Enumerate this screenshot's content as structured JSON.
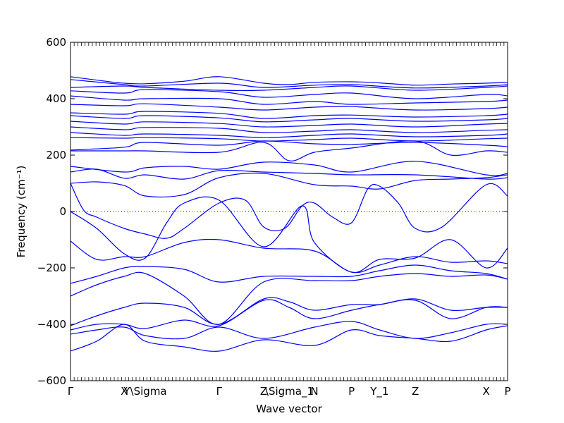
{
  "chart_data": {
    "type": "line",
    "title": "",
    "xlabel": "Wave vector",
    "ylabel": "Frequency (cm⁻¹)",
    "ylim": [
      -600,
      600
    ],
    "yticks": [
      -600,
      -400,
      -200,
      0,
      200,
      400,
      600
    ],
    "grid": false,
    "legend": "none",
    "line_color": "#0000ff",
    "zero_line": true,
    "high_symmetry_points": [
      {
        "label": "Γ",
        "x": 0.0
      },
      {
        "label": "X",
        "x": 0.123
      },
      {
        "label": "Y\\Sigma",
        "x": 0.171
      },
      {
        "label": "Γ",
        "x": 0.34
      },
      {
        "label": "Z",
        "x": 0.442
      },
      {
        "label": "\\Sigma_1",
        "x": 0.445
      },
      {
        "label": "N",
        "x": 0.558
      },
      {
        "label": "P",
        "x": 0.643
      },
      {
        "label": "Y_1",
        "x": 0.707
      },
      {
        "label": "Z",
        "x": 0.789
      },
      {
        "label": "X",
        "x": 0.951
      },
      {
        "label": "P",
        "x": 1.0
      }
    ],
    "series": [
      {
        "x": [
          0,
          0.08,
          0.123,
          0.171,
          0.26,
          0.34,
          0.442,
          0.5,
          0.558,
          0.643,
          0.707,
          0.789,
          0.87,
          0.951,
          1
        ],
        "y": [
          478,
          462,
          455,
          453,
          462,
          478,
          455,
          450,
          458,
          460,
          456,
          448,
          452,
          455,
          458
        ]
      },
      {
        "x": [
          0,
          0.123,
          0.171,
          0.34,
          0.442,
          0.558,
          0.643,
          0.789,
          0.951,
          1
        ],
        "y": [
          468,
          450,
          445,
          455,
          440,
          448,
          450,
          438,
          445,
          450
        ]
      },
      {
        "x": [
          0,
          0.123,
          0.171,
          0.34,
          0.442,
          0.558,
          0.643,
          0.789,
          0.951,
          1
        ],
        "y": [
          440,
          445,
          440,
          430,
          430,
          440,
          445,
          430,
          440,
          445
        ]
      },
      {
        "x": [
          0,
          0.123,
          0.171,
          0.34,
          0.442,
          0.558,
          0.643,
          0.789,
          0.951,
          1
        ],
        "y": [
          428,
          420,
          432,
          425,
          405,
          415,
          420,
          400,
          415,
          410
        ]
      },
      {
        "x": [
          0,
          0.123,
          0.171,
          0.34,
          0.442,
          0.558,
          0.643,
          0.789,
          0.951,
          1
        ],
        "y": [
          410,
          395,
          400,
          400,
          380,
          390,
          380,
          385,
          390,
          395
        ]
      },
      {
        "x": [
          0,
          0.123,
          0.171,
          0.34,
          0.442,
          0.558,
          0.643,
          0.789,
          0.951,
          1
        ],
        "y": [
          380,
          375,
          382,
          370,
          360,
          370,
          372,
          360,
          365,
          370
        ]
      },
      {
        "x": [
          0,
          0.123,
          0.171,
          0.34,
          0.442,
          0.558,
          0.643,
          0.789,
          0.951,
          1
        ],
        "y": [
          350,
          345,
          355,
          348,
          330,
          340,
          342,
          335,
          340,
          345
        ]
      },
      {
        "x": [
          0,
          0.123,
          0.171,
          0.34,
          0.442,
          0.558,
          0.643,
          0.789,
          0.951,
          1
        ],
        "y": [
          340,
          330,
          340,
          332,
          318,
          325,
          330,
          320,
          325,
          330
        ]
      },
      {
        "x": [
          0,
          0.123,
          0.171,
          0.34,
          0.442,
          0.558,
          0.643,
          0.789,
          0.951,
          1
        ],
        "y": [
          320,
          310,
          318,
          312,
          300,
          305,
          310,
          300,
          310,
          312
        ]
      },
      {
        "x": [
          0,
          0.123,
          0.171,
          0.34,
          0.442,
          0.558,
          0.643,
          0.789,
          0.951,
          1
        ],
        "y": [
          300,
          290,
          298,
          295,
          280,
          285,
          290,
          280,
          288,
          290
        ]
      },
      {
        "x": [
          0,
          0.123,
          0.171,
          0.34,
          0.442,
          0.558,
          0.643,
          0.789,
          0.951,
          1
        ],
        "y": [
          280,
          270,
          275,
          270,
          262,
          270,
          275,
          265,
          270,
          275
        ]
      },
      {
        "x": [
          0,
          0.123,
          0.171,
          0.34,
          0.442,
          0.558,
          0.643,
          0.789,
          0.951,
          1
        ],
        "y": [
          262,
          260,
          262,
          258,
          250,
          255,
          260,
          250,
          258,
          260
        ]
      },
      {
        "x": [
          0,
          0.123,
          0.171,
          0.34,
          0.442,
          0.558,
          0.643,
          0.789,
          0.951,
          1
        ],
        "y": [
          218,
          228,
          245,
          235,
          250,
          240,
          238,
          245,
          235,
          230
        ]
      },
      {
        "x": [
          0,
          0.123,
          0.171,
          0.34,
          0.442,
          0.5,
          0.558,
          0.643,
          0.789,
          0.87,
          0.951,
          1
        ],
        "y": [
          215,
          215,
          215,
          210,
          245,
          180,
          210,
          225,
          250,
          200,
          215,
          210
        ]
      },
      {
        "x": [
          0,
          0.123,
          0.171,
          0.26,
          0.34,
          0.442,
          0.558,
          0.643,
          0.789,
          0.951,
          1
        ],
        "y": [
          160,
          140,
          155,
          160,
          150,
          175,
          165,
          140,
          178,
          130,
          135
        ]
      },
      {
        "x": [
          0,
          0.06,
          0.123,
          0.171,
          0.26,
          0.34,
          0.442,
          0.558,
          0.643,
          0.789,
          0.951,
          1
        ],
        "y": [
          140,
          150,
          118,
          130,
          115,
          145,
          140,
          135,
          130,
          130,
          115,
          120
        ]
      },
      {
        "x": [
          0,
          0.06,
          0.123,
          0.171,
          0.26,
          0.34,
          0.442,
          0.558,
          0.643,
          0.707,
          0.789,
          0.87,
          0.951,
          1
        ],
        "y": [
          100,
          105,
          92,
          55,
          60,
          120,
          135,
          95,
          90,
          80,
          110,
          115,
          120,
          130
        ]
      },
      {
        "x": [
          0,
          0.03,
          0.06,
          0.123,
          0.171,
          0.22,
          0.26,
          0.34,
          0.4,
          0.442,
          0.49,
          0.53,
          0.558,
          0.6,
          0.643,
          0.68,
          0.707,
          0.75,
          0.789,
          0.85,
          0.951,
          1
        ],
        "y": [
          100,
          5,
          -20,
          -60,
          -80,
          -95,
          -60,
          30,
          40,
          -55,
          -60,
          20,
          30,
          -20,
          -40,
          80,
          90,
          30,
          -60,
          -55,
          95,
          55
        ]
      },
      {
        "x": [
          0,
          0.06,
          0.123,
          0.171,
          0.22,
          0.26,
          0.34,
          0.442,
          0.53,
          0.558,
          0.643,
          0.707,
          0.789,
          0.87,
          0.951,
          1
        ],
        "y": [
          0,
          -60,
          -150,
          -165,
          -40,
          30,
          40,
          -125,
          20,
          -110,
          -215,
          -170,
          -165,
          -100,
          -200,
          -130
        ]
      },
      {
        "x": [
          0,
          0.06,
          0.123,
          0.171,
          0.26,
          0.34,
          0.442,
          0.558,
          0.643,
          0.707,
          0.789,
          0.87,
          0.951,
          1
        ],
        "y": [
          -105,
          -170,
          -160,
          -160,
          -110,
          -100,
          -130,
          -140,
          -215,
          -190,
          -160,
          -180,
          -175,
          -185
        ]
      },
      {
        "x": [
          0,
          0.06,
          0.123,
          0.171,
          0.26,
          0.34,
          0.442,
          0.558,
          0.643,
          0.707,
          0.789,
          0.87,
          0.951,
          1
        ],
        "y": [
          -255,
          -230,
          -200,
          -195,
          -205,
          -250,
          -230,
          -230,
          -230,
          -210,
          -190,
          -210,
          -220,
          -240
        ]
      },
      {
        "x": [
          0,
          0.06,
          0.123,
          0.171,
          0.26,
          0.34,
          0.442,
          0.558,
          0.643,
          0.707,
          0.789,
          0.87,
          0.951,
          1
        ],
        "y": [
          -300,
          -260,
          -230,
          -220,
          -300,
          -400,
          -250,
          -245,
          -245,
          -230,
          -220,
          -230,
          -225,
          -240
        ]
      },
      {
        "x": [
          0,
          0.06,
          0.123,
          0.171,
          0.26,
          0.34,
          0.442,
          0.5,
          0.558,
          0.643,
          0.707,
          0.789,
          0.87,
          0.951,
          1
        ],
        "y": [
          -405,
          -370,
          -340,
          -325,
          -340,
          -400,
          -310,
          -320,
          -350,
          -330,
          -330,
          -310,
          -350,
          -340,
          -340
        ]
      },
      {
        "x": [
          0,
          0.06,
          0.123,
          0.171,
          0.26,
          0.34,
          0.442,
          0.5,
          0.558,
          0.643,
          0.707,
          0.789,
          0.87,
          0.951,
          1
        ],
        "y": [
          -420,
          -400,
          -400,
          -415,
          -385,
          -405,
          -315,
          -340,
          -380,
          -350,
          -330,
          -315,
          -380,
          -340,
          -340
        ]
      },
      {
        "x": [
          0,
          0.06,
          0.123,
          0.171,
          0.26,
          0.34,
          0.442,
          0.558,
          0.643,
          0.707,
          0.789,
          0.87,
          0.951,
          1
        ],
        "y": [
          -435,
          -420,
          -410,
          -440,
          -450,
          -410,
          -450,
          -410,
          -390,
          -420,
          -450,
          -430,
          -400,
          -400
        ]
      },
      {
        "x": [
          0,
          0.06,
          0.123,
          0.171,
          0.26,
          0.34,
          0.442,
          0.558,
          0.643,
          0.707,
          0.789,
          0.87,
          0.951,
          1
        ],
        "y": [
          -495,
          -460,
          -400,
          -460,
          -480,
          -495,
          -455,
          -475,
          -420,
          -440,
          -450,
          -460,
          -420,
          -405
        ]
      }
    ]
  }
}
